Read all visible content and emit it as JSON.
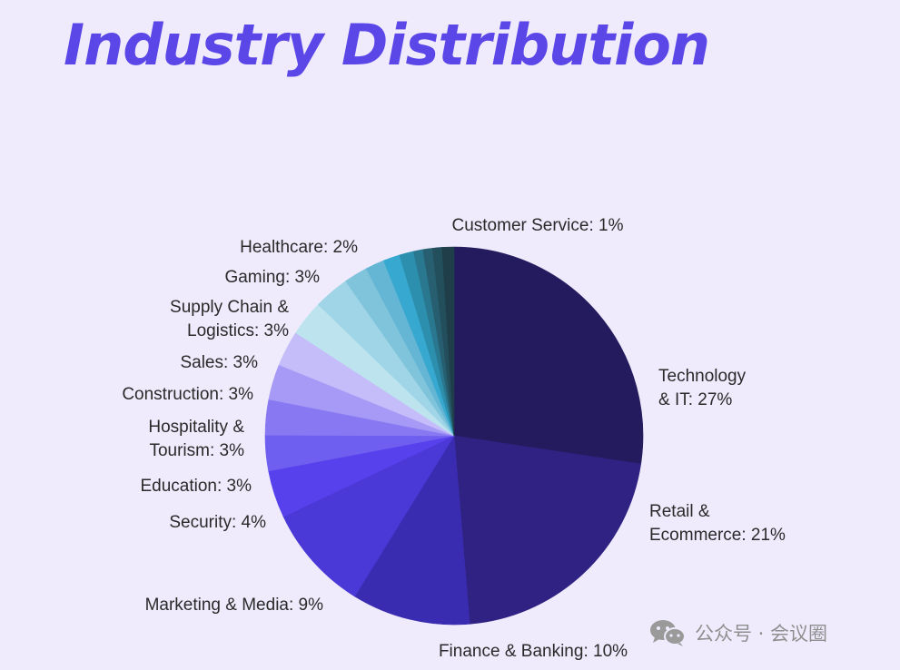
{
  "title": "Industry Distribution",
  "watermark": {
    "text": "公众号 · 会议圈",
    "icon": "wechat-icon"
  },
  "chart_data": {
    "type": "pie",
    "title": "Industry Distribution",
    "start_angle_deg": 0,
    "direction": "clockwise",
    "slices": [
      {
        "label": "Technology & IT",
        "value": 27,
        "display": [
          "Technology",
          "& IT: 27%"
        ],
        "color": "#241b5e"
      },
      {
        "label": "Retail & Ecommerce",
        "value": 21,
        "display": [
          "Retail &",
          "Ecommerce: 21%"
        ],
        "color": "#2f2283"
      },
      {
        "label": "Finance & Banking",
        "value": 10,
        "display": [
          "Finance & Banking: 10%"
        ],
        "color": "#3a2cb0"
      },
      {
        "label": "Marketing & Media",
        "value": 9,
        "display": [
          "Marketing & Media: 9%"
        ],
        "color": "#4a39d6"
      },
      {
        "label": "Security",
        "value": 4,
        "display": [
          "Security: 4%"
        ],
        "color": "#5641ec"
      },
      {
        "label": "Education",
        "value": 3,
        "display": [
          "Education: 3%"
        ],
        "color": "#6f5ff0"
      },
      {
        "label": "Hospitality & Tourism",
        "value": 3,
        "display": [
          "Hospitality &",
          "Tourism: 3%"
        ],
        "color": "#8878f2"
      },
      {
        "label": "Construction",
        "value": 3,
        "display": [
          "Construction: 3%"
        ],
        "color": "#a69af6"
      },
      {
        "label": "Sales",
        "value": 3,
        "display": [
          "Sales: 3%"
        ],
        "color": "#c4bdf9"
      },
      {
        "label": "Supply Chain & Logistics",
        "value": 3,
        "display": [
          "Supply Chain &",
          "Logistics: 3%"
        ],
        "color": "#bde4ee"
      },
      {
        "label": "Gaming",
        "value": 3,
        "display": [
          "Gaming: 3%"
        ],
        "color": "#9fd5e6"
      },
      {
        "label": "Healthcare",
        "value": 2,
        "display": [
          "Healthcare: 2%"
        ],
        "color": "#80c4dc"
      },
      {
        "label": "",
        "value": 1.6,
        "display": [],
        "color": "#64b6d4"
      },
      {
        "label": "",
        "value": 1.4,
        "display": [],
        "color": "#37a8cf"
      },
      {
        "label": "",
        "value": 1.2,
        "display": [],
        "color": "#2d8fae"
      },
      {
        "label": "",
        "value": 0.8,
        "display": [],
        "color": "#2a7790"
      },
      {
        "label": "",
        "value": 0.8,
        "display": [],
        "color": "#275f70"
      },
      {
        "label": "",
        "value": 0.8,
        "display": [],
        "color": "#234e5c"
      },
      {
        "label": "Customer Service",
        "value": 1,
        "display": [
          "Customer Service: 1%"
        ],
        "color": "#1f3e49"
      }
    ]
  }
}
